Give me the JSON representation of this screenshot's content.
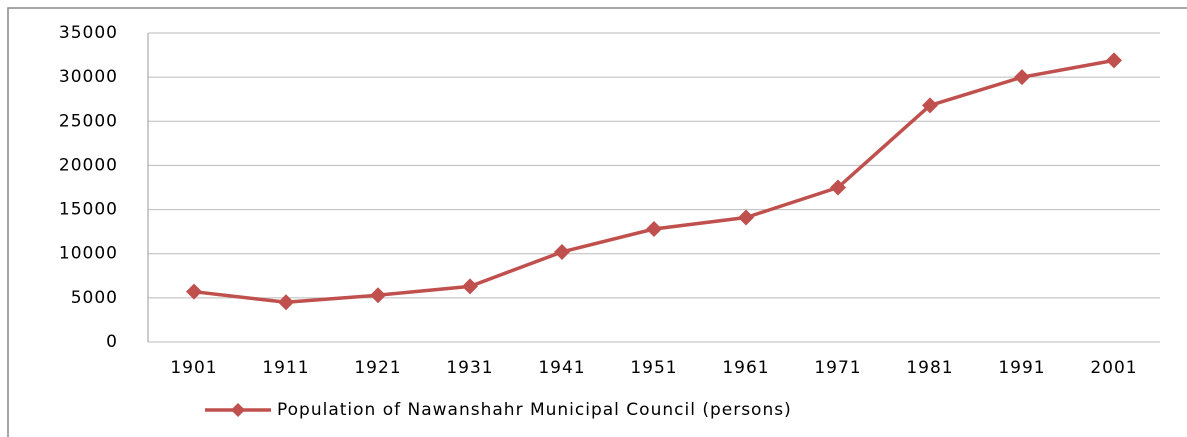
{
  "chart_data": {
    "type": "line",
    "categories": [
      "1901",
      "1911",
      "1921",
      "1931",
      "1941",
      "1951",
      "1961",
      "1971",
      "1981",
      "1991",
      "2001"
    ],
    "series": [
      {
        "name": "Population of Nawanshahr Municipal Council (persons)",
        "color": "#c0504d",
        "values": [
          5700,
          4500,
          5300,
          6300,
          10200,
          12800,
          14100,
          17500,
          26800,
          30000,
          31900
        ]
      }
    ],
    "ylim": [
      0,
      35000
    ],
    "yticks": [
      0,
      5000,
      10000,
      15000,
      20000,
      25000,
      30000,
      35000
    ],
    "grid": true,
    "legend": "bottom"
  }
}
